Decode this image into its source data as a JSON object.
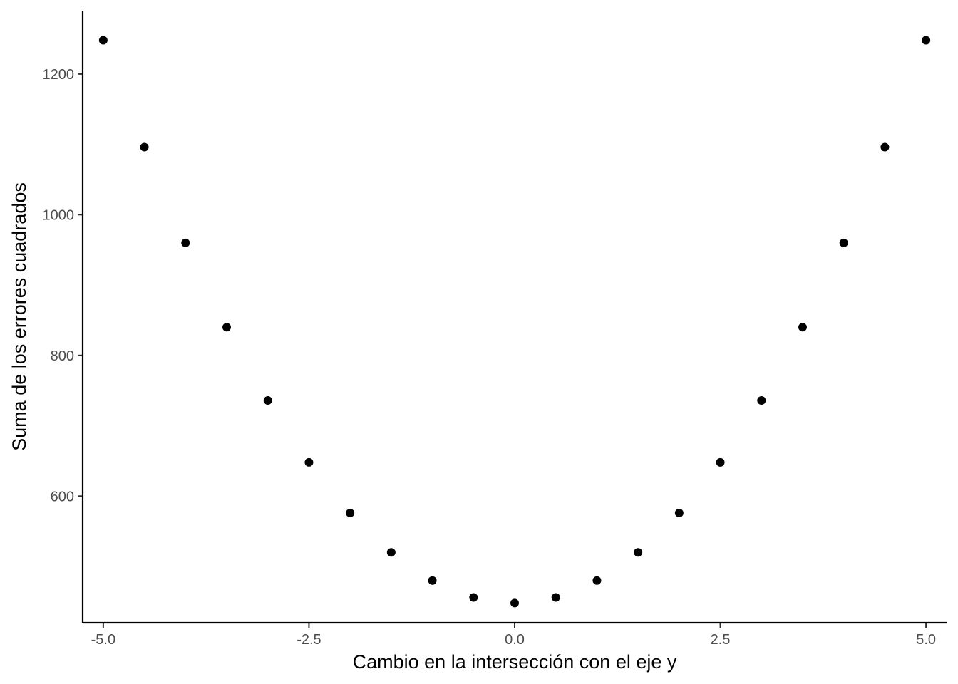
{
  "chart_data": {
    "type": "scatter",
    "title": "",
    "xlabel": "Cambio en la intersección con el eje y",
    "ylabel": "Suma de los errores cuadrados",
    "xlim": [
      -5.25,
      5.25
    ],
    "ylim": [
      420,
      1290
    ],
    "grid": false,
    "x_ticks": [
      {
        "value": -5.0,
        "label": "-5.0"
      },
      {
        "value": -2.5,
        "label": "-2.5"
      },
      {
        "value": 0.0,
        "label": "0.0"
      },
      {
        "value": 2.5,
        "label": "2.5"
      },
      {
        "value": 5.0,
        "label": "5.0"
      }
    ],
    "y_ticks": [
      {
        "value": 600,
        "label": "600"
      },
      {
        "value": 800,
        "label": "800"
      },
      {
        "value": 1000,
        "label": "1000"
      },
      {
        "value": 1200,
        "label": "1200"
      }
    ],
    "series": [
      {
        "color": "#000000",
        "points": [
          {
            "x": -5.0,
            "y": 1248
          },
          {
            "x": -4.5,
            "y": 1096
          },
          {
            "x": -4.0,
            "y": 960
          },
          {
            "x": -3.5,
            "y": 840
          },
          {
            "x": -3.0,
            "y": 736
          },
          {
            "x": -2.5,
            "y": 648
          },
          {
            "x": -2.0,
            "y": 576
          },
          {
            "x": -1.5,
            "y": 520
          },
          {
            "x": -1.0,
            "y": 480
          },
          {
            "x": -0.5,
            "y": 456
          },
          {
            "x": 0.0,
            "y": 448
          },
          {
            "x": 0.5,
            "y": 456
          },
          {
            "x": 1.0,
            "y": 480
          },
          {
            "x": 1.5,
            "y": 520
          },
          {
            "x": 2.0,
            "y": 576
          },
          {
            "x": 2.5,
            "y": 648
          },
          {
            "x": 3.0,
            "y": 736
          },
          {
            "x": 3.5,
            "y": 840
          },
          {
            "x": 4.0,
            "y": 960
          },
          {
            "x": 4.5,
            "y": 1096
          },
          {
            "x": 5.0,
            "y": 1248
          }
        ]
      }
    ]
  }
}
